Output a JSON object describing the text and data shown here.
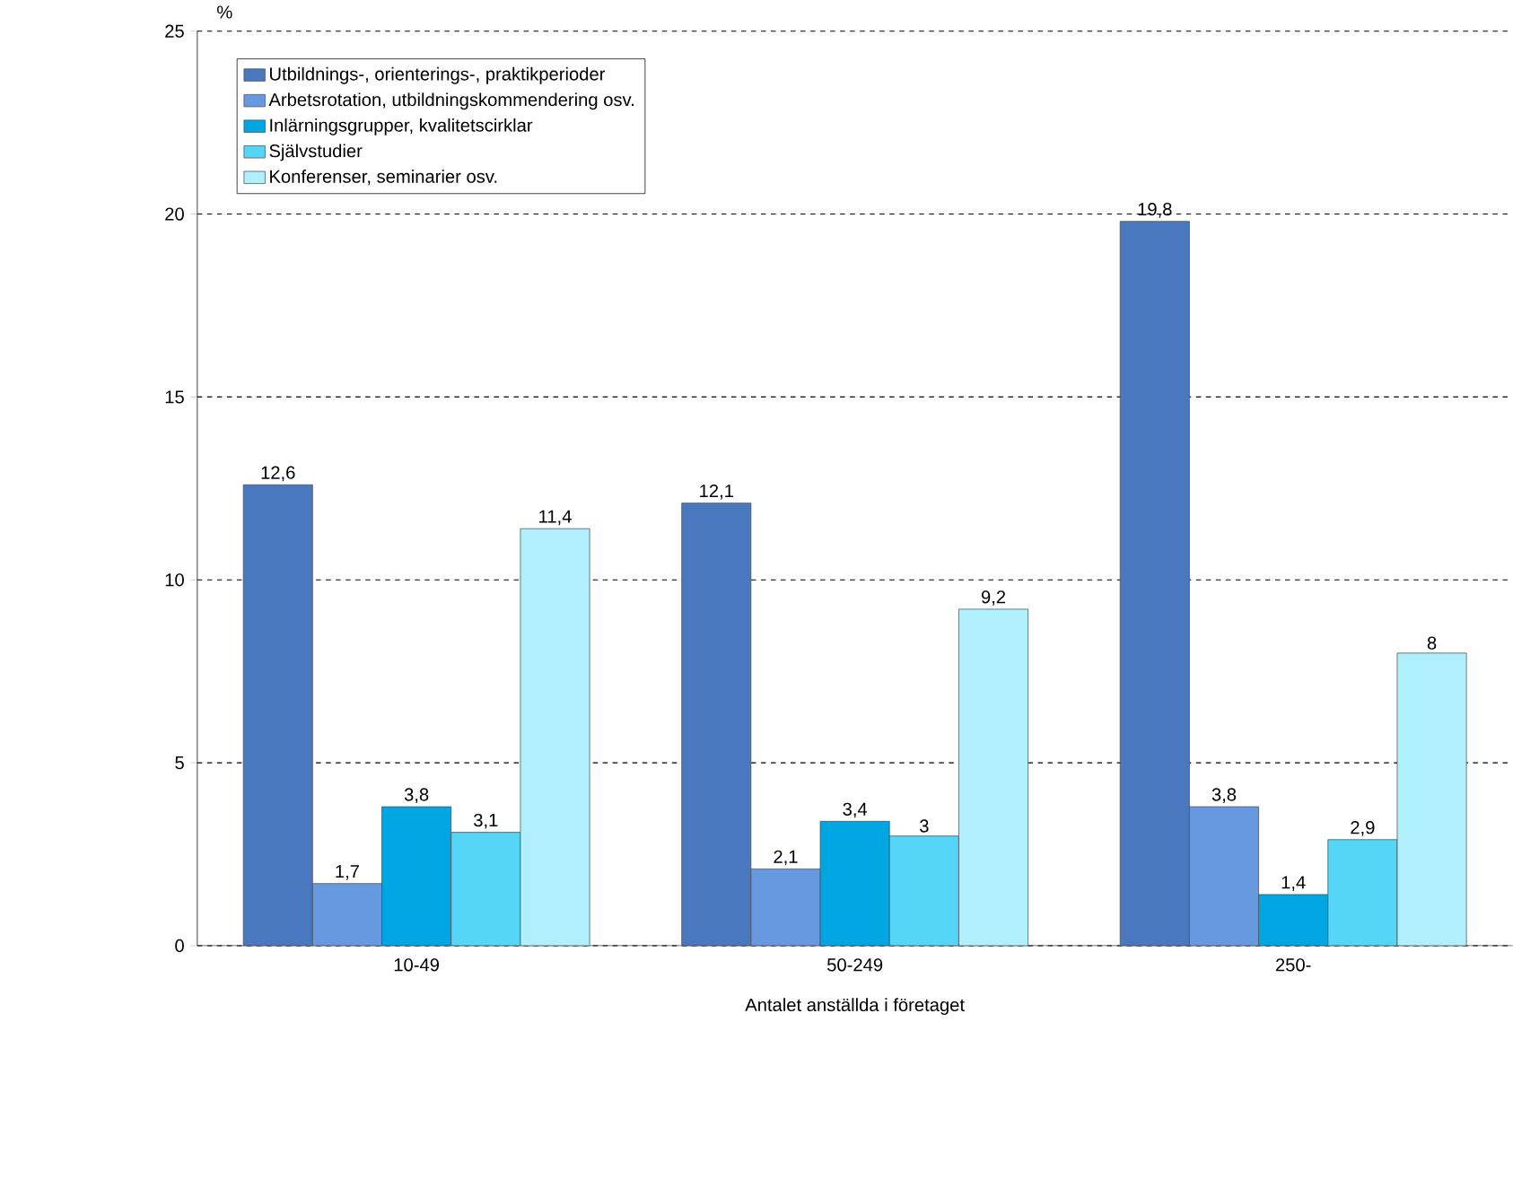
{
  "chart_data": {
    "type": "bar",
    "xlabel": "Antalet anställda i företaget",
    "ylabel": "%",
    "categories": [
      "10-49",
      "50-249",
      "250-"
    ],
    "series": [
      {
        "name": "Utbildnings-, orienterings-, praktikperioder",
        "color": "#4a78be",
        "values": [
          12.6,
          12.1,
          19.8
        ],
        "value_labels": [
          "12,6",
          "12,1",
          "19,8"
        ]
      },
      {
        "name": "Arbetsrotation, utbildningskommendering osv.",
        "color": "#6699e0",
        "values": [
          1.7,
          2.1,
          3.8
        ],
        "value_labels": [
          "1,7",
          "2,1",
          "3,8"
        ]
      },
      {
        "name": "Inlärningsgrupper, kvalitetscirklar",
        "color": "#00a6e2",
        "values": [
          3.8,
          3.4,
          1.4
        ],
        "value_labels": [
          "3,8",
          "3,4",
          "1,4"
        ]
      },
      {
        "name": "Självstudier",
        "color": "#55d6f6",
        "values": [
          3.1,
          3,
          2.9
        ],
        "value_labels": [
          "3,1",
          "3",
          "2,9"
        ]
      },
      {
        "name": "Konferenser, seminarier osv.",
        "color": "#b0f0fc",
        "values": [
          11.4,
          9.2,
          8
        ],
        "value_labels": [
          "11,4",
          "9,2",
          "8"
        ]
      }
    ],
    "ylim": [
      0,
      25
    ],
    "yticks": [
      0,
      5,
      10,
      15,
      20,
      25
    ],
    "grid": "y",
    "legend": "top left"
  }
}
